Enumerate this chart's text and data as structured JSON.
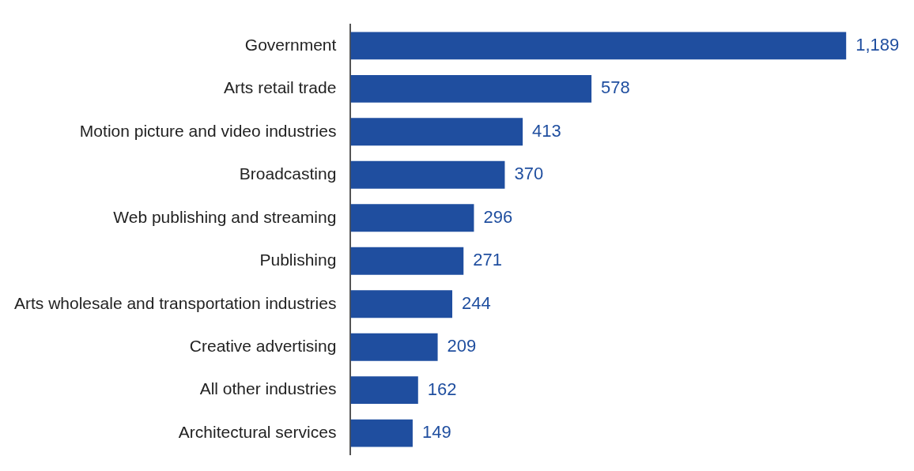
{
  "chart_data": {
    "type": "bar",
    "orientation": "horizontal",
    "categories": [
      "Government",
      "Arts retail trade",
      "Motion picture and video industries",
      "Broadcasting",
      "Web publishing and streaming",
      "Publishing",
      "Arts wholesale and transportation industries",
      "Creative advertising",
      "All other industries",
      "Architectural services"
    ],
    "values": [
      1189,
      578,
      413,
      370,
      296,
      271,
      244,
      209,
      162,
      149
    ],
    "value_labels": [
      "1,189",
      "578",
      "413",
      "370",
      "296",
      "271",
      "244",
      "209",
      "162",
      "149"
    ],
    "color": "#1f4e9f",
    "legend": false
  }
}
